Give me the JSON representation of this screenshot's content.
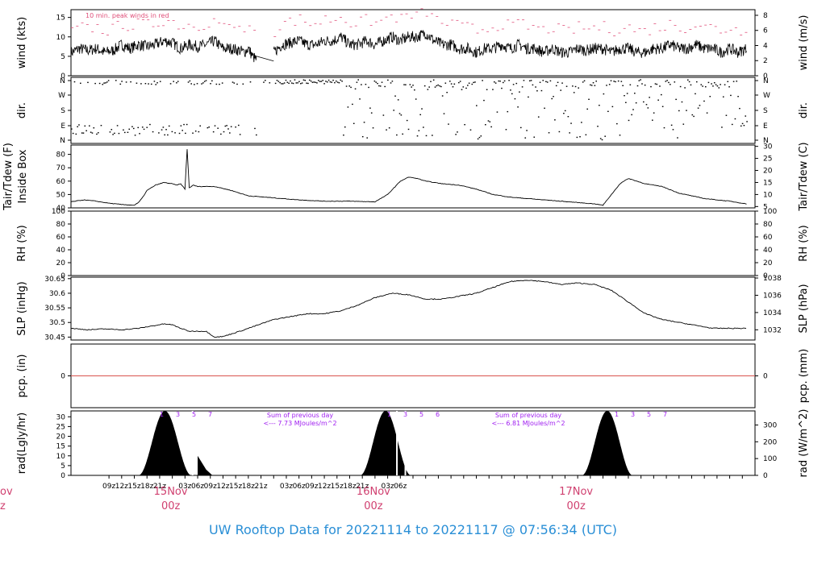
{
  "title": "UW Rooftop Data for 20221114  to  20221117 @ 07:56:34  (UTC)",
  "colors": {
    "peak": "#e0507a",
    "rain": "#d9534f",
    "date": "#d04070",
    "solar_note": "#a020f0",
    "title": "#2a8fd6"
  },
  "chart_data": [
    {
      "type": "line",
      "id": "wind",
      "ylabel_left": "wind (kts)",
      "ylabel_right": "wind (m/s)",
      "ylim": [
        0,
        17
      ],
      "yticks": [
        0,
        5,
        10,
        15
      ],
      "yticks_right": [
        0,
        2,
        4,
        6,
        8
      ],
      "annotation": "10 min. peak winds in red",
      "series": [
        {
          "name": "wind",
          "values": [
            6,
            7,
            6.5,
            7,
            6,
            6.5,
            8,
            7,
            8,
            7.5,
            8,
            9,
            8.5,
            7,
            8,
            7.5,
            8,
            9,
            7,
            7,
            6.5,
            6,
            7,
            5,
            4
          ],
          "t": [
            0,
            2,
            4,
            6,
            8,
            10,
            12,
            14,
            16,
            18,
            20,
            22,
            24,
            26,
            28,
            30,
            32,
            34,
            36,
            38,
            40,
            41,
            42,
            43,
            44
          ]
        },
        {
          "values": [
            6,
            8,
            8.5,
            9,
            8,
            8,
            9,
            9,
            10,
            8,
            8,
            9,
            8,
            9,
            10,
            9,
            10,
            10,
            11,
            9,
            8,
            8,
            7,
            7,
            6,
            7,
            7,
            8,
            7,
            8,
            7,
            7,
            6,
            7,
            6,
            6,
            7,
            6.5,
            7,
            7,
            6,
            7,
            7,
            6,
            6,
            7,
            7,
            8,
            7,
            7,
            8,
            7,
            7,
            6,
            7,
            6,
            7
          ],
          "t": [
            48,
            50,
            52,
            54,
            56,
            58,
            60,
            62,
            64,
            66,
            68,
            70,
            72,
            74,
            76,
            78,
            80,
            82,
            84,
            86,
            88,
            90,
            92,
            94,
            96,
            98,
            100,
            102,
            104,
            106,
            108,
            110,
            112,
            114,
            116,
            118,
            120,
            122,
            124,
            126,
            128,
            130,
            132,
            134,
            136,
            138,
            140,
            142,
            144,
            146,
            148,
            150,
            152,
            154,
            156,
            158,
            160
          ]
        }
      ]
    },
    {
      "type": "scatter",
      "id": "dir",
      "ylabel_left": "dir.",
      "ylabel_right": "dir.",
      "yticks_labels": [
        "N",
        "E",
        "S",
        "W",
        "N"
      ]
    },
    {
      "type": "line",
      "id": "temp",
      "ylabel_left": "Tair/Tdew (F)",
      "ylabel_left2": "Inside Box",
      "ylabel_right": "Tair/Tdew (C)",
      "ylim": [
        40,
        87
      ],
      "yticks": [
        40,
        50,
        60,
        70,
        80
      ],
      "yticks_right": [
        5,
        10,
        15,
        20,
        25,
        30
      ],
      "series": [
        {
          "name": "Tair",
          "t": [
            0,
            3,
            6,
            9,
            12,
            15,
            16,
            17,
            18,
            20,
            22,
            24,
            25,
            26,
            27,
            27.5,
            28,
            29,
            30,
            34,
            38,
            42,
            46,
            50,
            54,
            60,
            66,
            72,
            75,
            78,
            80,
            82,
            84,
            86,
            88,
            92,
            96,
            100,
            104,
            108,
            112,
            116,
            120,
            124,
            126,
            128,
            130,
            132,
            134,
            136,
            140,
            144,
            150,
            156,
            160
          ],
          "values": [
            44.5,
            46,
            45,
            43.5,
            42.5,
            42,
            44,
            48,
            53,
            57,
            59,
            58,
            57,
            58,
            54,
            84,
            55,
            57,
            56,
            56,
            53,
            49,
            48,
            47,
            46,
            45,
            45,
            44.5,
            50,
            60,
            63,
            62,
            60,
            59,
            58,
            57,
            54,
            50,
            48,
            47,
            46,
            45,
            44,
            43,
            42,
            50,
            58,
            62,
            60,
            58,
            56,
            51,
            47,
            45,
            43
          ]
        }
      ]
    },
    {
      "type": "line",
      "id": "rh",
      "ylabel_left": "RH (%)",
      "ylabel_right": "RH (%)",
      "ylim": [
        0,
        100
      ],
      "yticks": [
        0,
        20,
        40,
        60,
        80,
        100
      ],
      "yticks_right": [
        0,
        20,
        40,
        60,
        80,
        100
      ],
      "series": []
    },
    {
      "type": "line",
      "id": "slp",
      "ylabel_left": "SLP (inHg)",
      "ylabel_right": "SLP (hPa)",
      "ylim": [
        30.44,
        30.655
      ],
      "yticks": [
        30.45,
        30.5,
        30.55,
        30.6,
        30.65
      ],
      "yticks_right": [
        1032,
        1034,
        1036,
        1038
      ],
      "series": [
        {
          "name": "SLP",
          "t": [
            0,
            4,
            8,
            12,
            16,
            20,
            22,
            24,
            26,
            28,
            32,
            34,
            36,
            40,
            44,
            48,
            52,
            56,
            60,
            64,
            68,
            72,
            76,
            80,
            84,
            88,
            92,
            96,
            100,
            104,
            108,
            112,
            116,
            120,
            124,
            128,
            132,
            136,
            140,
            144,
            148,
            152,
            156,
            160
          ],
          "values": [
            30.48,
            30.475,
            30.478,
            30.475,
            30.48,
            30.49,
            30.495,
            30.492,
            30.48,
            30.47,
            30.47,
            30.45,
            30.452,
            30.47,
            30.49,
            30.51,
            30.52,
            30.53,
            30.53,
            30.54,
            30.56,
            30.585,
            30.6,
            30.595,
            30.58,
            30.58,
            30.59,
            30.6,
            30.62,
            30.64,
            30.645,
            30.64,
            30.63,
            30.635,
            30.63,
            30.61,
            30.57,
            30.53,
            30.51,
            30.5,
            30.49,
            30.48,
            30.48,
            30.48
          ]
        }
      ]
    },
    {
      "type": "line",
      "id": "pcp",
      "ylabel_left": "pcp. (in)",
      "ylabel_right": "pcp. (mm)",
      "ylim": [
        -1,
        1
      ],
      "yticks": [
        0
      ],
      "yticks_right": [
        0
      ],
      "series": [
        {
          "name": "pcp",
          "values": [
            0,
            0
          ]
        }
      ]
    },
    {
      "type": "area",
      "id": "rad",
      "ylabel_left": "rad(Lgly/hr)",
      "ylabel_right": "rad (W/m^2)",
      "ylim": [
        0,
        33
      ],
      "yticks": [
        0,
        5,
        10,
        15,
        20,
        25,
        30
      ],
      "yticks_right": [
        0,
        100,
        200,
        300
      ],
      "notes": [
        "Sum of previous day",
        "<--- 7.73 MJoules/m^2",
        "Sum of previous day",
        "<--- 6.81 MJoules/m^2"
      ],
      "hour_marks": [
        "1",
        "3",
        "5",
        "7"
      ],
      "hour_marks2": [
        "1",
        "3",
        "5",
        "6"
      ],
      "day_peaks": [
        {
          "start": 16,
          "end": 28.5,
          "peak": 33
        },
        {
          "start": 68.5,
          "end": 80.5,
          "peak": 33
        },
        {
          "start": 121,
          "end": 133,
          "peak": 33
        }
      ]
    },
    {
      "type": "axis",
      "id": "time",
      "ticks": [
        "09z",
        "12z",
        "15z",
        "18z",
        "21z",
        "03z",
        "06z",
        "09z",
        "12z",
        "15z",
        "18z",
        "21z",
        "03z",
        "06z",
        "09z",
        "12z",
        "15z",
        "18z",
        "21z",
        "03z",
        "06z"
      ],
      "dates": [
        {
          "label": "15Nov",
          "sub": "00z"
        },
        {
          "label": "16Nov",
          "sub": "00z"
        },
        {
          "label": "17Nov",
          "sub": "00z"
        }
      ],
      "edge_left": {
        "label": "ov",
        "sub": "z"
      }
    }
  ]
}
